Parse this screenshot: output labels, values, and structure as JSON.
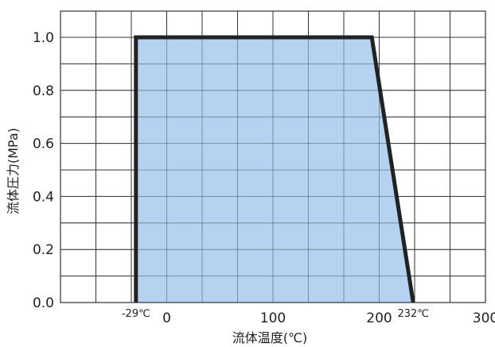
{
  "chart_data": {
    "type": "area",
    "title": "",
    "xlabel": "流体温度(℃)",
    "ylabel": "流体圧力(MPa)",
    "xlim": [
      -100,
      300
    ],
    "ylim": [
      0,
      1.1
    ],
    "x_ticks": [
      0,
      100,
      200,
      300
    ],
    "x_tick_labels": [
      "0",
      "100",
      "200",
      "300"
    ],
    "y_ticks": [
      0,
      0.2,
      0.4,
      0.6,
      0.8,
      1.0
    ],
    "y_tick_labels": [
      "0.0",
      "0.2",
      "0.4",
      "0.6",
      "0.8",
      "1.0"
    ],
    "grid": true,
    "series": [
      {
        "x": [
          -29,
          -29,
          193,
          232
        ],
        "y": [
          0,
          1.0,
          1.0,
          0
        ]
      }
    ],
    "annotations": [
      {
        "text": "-29℃",
        "x": -29,
        "y": 0
      },
      {
        "text": "232℃",
        "x": 232,
        "y": 0
      }
    ],
    "colors": {
      "fill": "#b3d3f0",
      "line": "#222222",
      "grid": "#333333"
    }
  }
}
